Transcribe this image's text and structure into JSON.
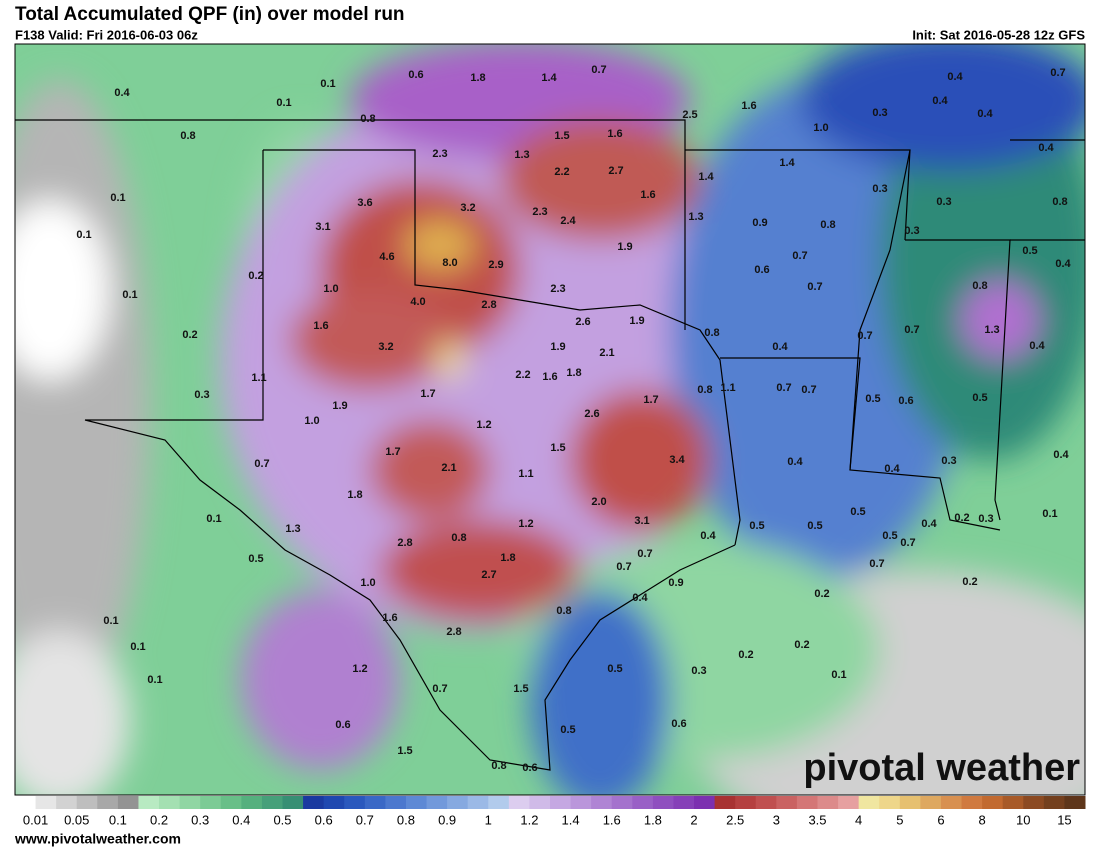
{
  "header": {
    "title": "Total Accumulated QPF (in) over model run",
    "valid": "F138 Valid: Fri 2016-06-03 06z",
    "init": "Init: Sat 2016-05-28 12z GFS"
  },
  "map_labels": [
    "0.4",
    "0.1",
    "0.6",
    "1.8",
    "1.4",
    "0.7",
    "0.4",
    "0.7",
    "0.1",
    "0.8",
    "0.8",
    "2.5",
    "1.6",
    "1.0",
    "0.3",
    "0.4",
    "0.4",
    "1.5",
    "1.6",
    "1.3",
    "2.3",
    "1.4",
    "0.4",
    "2.2",
    "2.7",
    "1.4",
    "0.1",
    "0.3",
    "0.3",
    "0.8",
    "3.6",
    "3.2",
    "2.3",
    "2.4",
    "1.6",
    "1.3",
    "0.9",
    "0.8",
    "0.1",
    "3.1",
    "0.3",
    "0.5",
    "4.6",
    "8.0",
    "2.9",
    "1.9",
    "0.7",
    "0.6",
    "0.4",
    "0.2",
    "1.0",
    "2.3",
    "0.7",
    "0.8",
    "0.1",
    "4.0",
    "2.8",
    "1.6",
    "2.6",
    "1.9",
    "0.8",
    "0.7",
    "0.7",
    "1.3",
    "0.2",
    "3.2",
    "1.9",
    "2.1",
    "0.4",
    "0.4",
    "1.1",
    "2.2",
    "1.6",
    "1.8",
    "0.8",
    "1.1",
    "0.7",
    "0.7",
    "0.3",
    "1.7",
    "0.5",
    "0.6",
    "0.5",
    "1.9",
    "1.7",
    "2.6",
    "1.0",
    "1.2",
    "1.5",
    "1.7",
    "3.4",
    "0.4",
    "0.4",
    "0.3",
    "0.4",
    "0.7",
    "2.1",
    "1.1",
    "1.8",
    "2.0",
    "0.1",
    "1.3",
    "1.2",
    "3.1",
    "0.5",
    "0.5",
    "0.5",
    "0.4",
    "0.4",
    "0.2",
    "0.3",
    "0.1",
    "0.5",
    "0.7",
    "0.8",
    "2.8",
    "0.5",
    "1.8",
    "0.7",
    "0.7",
    "1.0",
    "2.7",
    "0.7",
    "0.4",
    "0.9",
    "0.2",
    "0.2",
    "0.8",
    "1.6",
    "0.1",
    "2.8",
    "0.1",
    "0.2",
    "0.2",
    "1.2",
    "0.5",
    "0.3",
    "0.1",
    "0.1",
    "0.7",
    "1.5",
    "0.6",
    "0.5",
    "0.6",
    "1.5",
    "0.8",
    "0.6"
  ],
  "legend": {
    "labels": [
      "0.01",
      "0.05",
      "0.1",
      "0.2",
      "0.3",
      "0.4",
      "0.5",
      "0.6",
      "0.7",
      "0.8",
      "0.9",
      "1",
      "1.2",
      "1.4",
      "1.6",
      "1.8",
      "2",
      "2.5",
      "3",
      "3.5",
      "4",
      "5",
      "6",
      "8",
      "10",
      "15"
    ],
    "colors": [
      "#ffffff",
      "#e6e6e6",
      "#d2d2d2",
      "#bebebe",
      "#a8a8a8",
      "#939393",
      "#b8eac2",
      "#a4e0b2",
      "#90d6a3",
      "#7ccb95",
      "#68bf88",
      "#55b07e",
      "#46a07a",
      "#378f74",
      "#1a3aa0",
      "#1f48b0",
      "#2a58bd",
      "#3a68c6",
      "#4c78ce",
      "#5e89d5",
      "#7299db",
      "#86a9e0",
      "#9bb9e6",
      "#b2cbec",
      "#dccdef",
      "#d0bbe8",
      "#c5a8e2",
      "#ba96db",
      "#af84d4",
      "#a472cd",
      "#9960c6",
      "#8f4fbf",
      "#8640b8",
      "#7c30b0",
      "#a83232",
      "#b54040",
      "#c05050",
      "#ca6262",
      "#d47676",
      "#dc8a8a",
      "#e6a0a0",
      "#f0e6a0",
      "#eed68a",
      "#e6c070",
      "#dea860",
      "#d89050",
      "#d07a40",
      "#c26a30",
      "#a85a28",
      "#8c4a22",
      "#74401e",
      "#5e361a"
    ]
  },
  "footer": {
    "url": "www.pivotalweather.com",
    "logo": "pivotal weather"
  }
}
